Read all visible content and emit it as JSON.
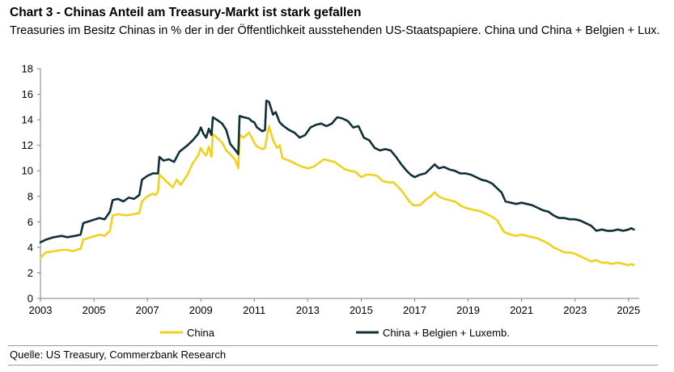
{
  "title": "Chart 3 - Chinas Anteil am Treasury-Markt ist stark gefallen",
  "subtitle": "Treasuries im Besitz Chinas in % der in der Öffentlichkeit ausstehenden US-Staatspapiere. China und China + Belgien + Lux.",
  "source": "Quelle: US Treasury, Commerzbank Research",
  "colors": {
    "china": "#f2d11d",
    "china_bel_lux": "#0f3037"
  },
  "chart_data": {
    "type": "line",
    "title": "Chart 3 - Chinas Anteil am Treasury-Markt ist stark gefallen",
    "xlabel": "",
    "ylabel": "",
    "xlim": [
      2003,
      2025.4
    ],
    "ylim": [
      0,
      18
    ],
    "x_ticks": [
      "2003",
      "2005",
      "2007",
      "2009",
      "2011",
      "2013",
      "2015",
      "2017",
      "2019",
      "2021",
      "2023",
      "2025"
    ],
    "x_tick_values": [
      2003,
      2005,
      2007,
      2009,
      2011,
      2013,
      2015,
      2017,
      2019,
      2021,
      2023,
      2025
    ],
    "y_ticks": [
      "0",
      "2",
      "4",
      "6",
      "8",
      "10",
      "12",
      "14",
      "16",
      "18"
    ],
    "y_tick_values": [
      0,
      2,
      4,
      6,
      8,
      10,
      12,
      14,
      16,
      18
    ],
    "grid": false,
    "legend": "bottom",
    "series": [
      {
        "name": "China",
        "color": "#f2d11d",
        "points": [
          [
            2003.0,
            3.2
          ],
          [
            2003.2,
            3.6
          ],
          [
            2003.5,
            3.7
          ],
          [
            2003.8,
            3.8
          ],
          [
            2004.0,
            3.8
          ],
          [
            2004.2,
            3.7
          ],
          [
            2004.5,
            3.9
          ],
          [
            2004.6,
            4.6
          ],
          [
            2004.9,
            4.8
          ],
          [
            2005.2,
            5.0
          ],
          [
            2005.4,
            4.9
          ],
          [
            2005.6,
            5.3
          ],
          [
            2005.7,
            6.5
          ],
          [
            2005.9,
            6.6
          ],
          [
            2006.2,
            6.5
          ],
          [
            2006.5,
            6.6
          ],
          [
            2006.7,
            6.7
          ],
          [
            2006.8,
            7.6
          ],
          [
            2007.0,
            8.0
          ],
          [
            2007.2,
            8.2
          ],
          [
            2007.3,
            8.1
          ],
          [
            2007.4,
            8.4
          ],
          [
            2007.45,
            9.7
          ],
          [
            2007.6,
            9.4
          ],
          [
            2007.8,
            9.0
          ],
          [
            2007.95,
            8.7
          ],
          [
            2008.1,
            9.3
          ],
          [
            2008.25,
            8.9
          ],
          [
            2008.5,
            9.7
          ],
          [
            2008.7,
            10.6
          ],
          [
            2008.9,
            11.2
          ],
          [
            2009.0,
            11.8
          ],
          [
            2009.1,
            11.4
          ],
          [
            2009.2,
            11.2
          ],
          [
            2009.3,
            11.9
          ],
          [
            2009.4,
            11.1
          ],
          [
            2009.45,
            12.9
          ],
          [
            2009.6,
            12.6
          ],
          [
            2009.8,
            12.2
          ],
          [
            2009.95,
            11.6
          ],
          [
            2010.1,
            11.3
          ],
          [
            2010.3,
            10.8
          ],
          [
            2010.4,
            10.2
          ],
          [
            2010.45,
            12.8
          ],
          [
            2010.6,
            12.6
          ],
          [
            2010.8,
            13.0
          ],
          [
            2010.9,
            12.6
          ],
          [
            2011.0,
            12.2
          ],
          [
            2011.1,
            11.9
          ],
          [
            2011.3,
            11.7
          ],
          [
            2011.4,
            11.8
          ],
          [
            2011.5,
            13.0
          ],
          [
            2011.55,
            13.5
          ],
          [
            2011.7,
            12.4
          ],
          [
            2011.85,
            11.8
          ],
          [
            2011.95,
            12.0
          ],
          [
            2012.05,
            11.0
          ],
          [
            2012.3,
            10.8
          ],
          [
            2012.6,
            10.5
          ],
          [
            2012.8,
            10.3
          ],
          [
            2013.0,
            10.2
          ],
          [
            2013.2,
            10.3
          ],
          [
            2013.4,
            10.6
          ],
          [
            2013.6,
            10.9
          ],
          [
            2013.8,
            10.8
          ],
          [
            2014.0,
            10.7
          ],
          [
            2014.2,
            10.4
          ],
          [
            2014.4,
            10.1
          ],
          [
            2014.6,
            10.0
          ],
          [
            2014.8,
            9.9
          ],
          [
            2015.0,
            9.5
          ],
          [
            2015.2,
            9.7
          ],
          [
            2015.4,
            9.7
          ],
          [
            2015.6,
            9.6
          ],
          [
            2015.8,
            9.2
          ],
          [
            2016.0,
            9.1
          ],
          [
            2016.2,
            9.1
          ],
          [
            2016.4,
            8.7
          ],
          [
            2016.6,
            8.2
          ],
          [
            2016.8,
            7.6
          ],
          [
            2016.95,
            7.3
          ],
          [
            2017.2,
            7.3
          ],
          [
            2017.4,
            7.7
          ],
          [
            2017.6,
            8.0
          ],
          [
            2017.75,
            8.3
          ],
          [
            2017.9,
            8.0
          ],
          [
            2018.1,
            7.8
          ],
          [
            2018.3,
            7.7
          ],
          [
            2018.5,
            7.6
          ],
          [
            2018.7,
            7.3
          ],
          [
            2018.9,
            7.1
          ],
          [
            2019.1,
            7.0
          ],
          [
            2019.3,
            6.9
          ],
          [
            2019.5,
            6.8
          ],
          [
            2019.7,
            6.6
          ],
          [
            2019.9,
            6.4
          ],
          [
            2020.1,
            6.1
          ],
          [
            2020.2,
            5.7
          ],
          [
            2020.35,
            5.2
          ],
          [
            2020.6,
            5.0
          ],
          [
            2020.8,
            4.9
          ],
          [
            2021.0,
            5.0
          ],
          [
            2021.2,
            4.9
          ],
          [
            2021.4,
            4.8
          ],
          [
            2021.6,
            4.7
          ],
          [
            2021.8,
            4.5
          ],
          [
            2022.0,
            4.3
          ],
          [
            2022.2,
            4.0
          ],
          [
            2022.4,
            3.8
          ],
          [
            2022.6,
            3.6
          ],
          [
            2022.8,
            3.6
          ],
          [
            2023.0,
            3.5
          ],
          [
            2023.2,
            3.3
          ],
          [
            2023.4,
            3.1
          ],
          [
            2023.6,
            2.9
          ],
          [
            2023.8,
            3.0
          ],
          [
            2024.0,
            2.8
          ],
          [
            2024.2,
            2.8
          ],
          [
            2024.4,
            2.7
          ],
          [
            2024.6,
            2.8
          ],
          [
            2024.8,
            2.7
          ],
          [
            2025.0,
            2.6
          ],
          [
            2025.1,
            2.7
          ],
          [
            2025.2,
            2.6
          ]
        ]
      },
      {
        "name": "China + Belgien + Luxemb.",
        "color": "#0f3037",
        "points": [
          [
            2003.0,
            4.4
          ],
          [
            2003.2,
            4.6
          ],
          [
            2003.5,
            4.8
          ],
          [
            2003.8,
            4.9
          ],
          [
            2004.0,
            4.8
          ],
          [
            2004.3,
            4.9
          ],
          [
            2004.5,
            5.0
          ],
          [
            2004.6,
            5.9
          ],
          [
            2004.9,
            6.1
          ],
          [
            2005.2,
            6.3
          ],
          [
            2005.4,
            6.2
          ],
          [
            2005.6,
            6.8
          ],
          [
            2005.7,
            7.7
          ],
          [
            2005.9,
            7.8
          ],
          [
            2006.1,
            7.6
          ],
          [
            2006.3,
            7.9
          ],
          [
            2006.5,
            7.8
          ],
          [
            2006.7,
            8.1
          ],
          [
            2006.8,
            9.3
          ],
          [
            2007.0,
            9.6
          ],
          [
            2007.2,
            9.8
          ],
          [
            2007.4,
            9.8
          ],
          [
            2007.45,
            11.1
          ],
          [
            2007.6,
            10.8
          ],
          [
            2007.8,
            10.9
          ],
          [
            2008.0,
            10.7
          ],
          [
            2008.2,
            11.5
          ],
          [
            2008.5,
            12.0
          ],
          [
            2008.7,
            12.4
          ],
          [
            2008.9,
            12.9
          ],
          [
            2009.0,
            13.4
          ],
          [
            2009.1,
            12.9
          ],
          [
            2009.2,
            12.6
          ],
          [
            2009.3,
            13.3
          ],
          [
            2009.4,
            12.8
          ],
          [
            2009.45,
            14.2
          ],
          [
            2009.6,
            14.0
          ],
          [
            2009.8,
            13.7
          ],
          [
            2009.95,
            13.2
          ],
          [
            2010.1,
            12.1
          ],
          [
            2010.3,
            11.6
          ],
          [
            2010.4,
            11.3
          ],
          [
            2010.45,
            14.3
          ],
          [
            2010.6,
            14.2
          ],
          [
            2010.8,
            14.1
          ],
          [
            2010.9,
            13.9
          ],
          [
            2011.0,
            13.8
          ],
          [
            2011.1,
            13.4
          ],
          [
            2011.3,
            13.1
          ],
          [
            2011.4,
            13.2
          ],
          [
            2011.45,
            15.5
          ],
          [
            2011.55,
            15.4
          ],
          [
            2011.7,
            14.4
          ],
          [
            2011.8,
            14.6
          ],
          [
            2011.95,
            13.8
          ],
          [
            2012.1,
            13.5
          ],
          [
            2012.3,
            13.2
          ],
          [
            2012.5,
            13.0
          ],
          [
            2012.7,
            12.6
          ],
          [
            2012.9,
            12.8
          ],
          [
            2013.1,
            13.4
          ],
          [
            2013.3,
            13.6
          ],
          [
            2013.5,
            13.7
          ],
          [
            2013.7,
            13.5
          ],
          [
            2013.9,
            13.7
          ],
          [
            2014.1,
            14.2
          ],
          [
            2014.3,
            14.1
          ],
          [
            2014.5,
            13.9
          ],
          [
            2014.7,
            13.4
          ],
          [
            2014.9,
            13.5
          ],
          [
            2015.1,
            12.6
          ],
          [
            2015.3,
            12.4
          ],
          [
            2015.5,
            11.8
          ],
          [
            2015.7,
            11.6
          ],
          [
            2015.9,
            11.7
          ],
          [
            2016.1,
            11.6
          ],
          [
            2016.3,
            11.1
          ],
          [
            2016.5,
            10.5
          ],
          [
            2016.7,
            10.0
          ],
          [
            2016.85,
            9.7
          ],
          [
            2017.0,
            9.5
          ],
          [
            2017.2,
            9.7
          ],
          [
            2017.4,
            9.8
          ],
          [
            2017.6,
            10.2
          ],
          [
            2017.75,
            10.5
          ],
          [
            2017.9,
            10.2
          ],
          [
            2018.1,
            10.3
          ],
          [
            2018.3,
            10.1
          ],
          [
            2018.5,
            10.0
          ],
          [
            2018.7,
            9.8
          ],
          [
            2018.9,
            9.8
          ],
          [
            2019.1,
            9.7
          ],
          [
            2019.3,
            9.5
          ],
          [
            2019.5,
            9.3
          ],
          [
            2019.7,
            9.2
          ],
          [
            2019.9,
            9.0
          ],
          [
            2020.1,
            8.6
          ],
          [
            2020.25,
            8.3
          ],
          [
            2020.4,
            7.6
          ],
          [
            2020.6,
            7.5
          ],
          [
            2020.8,
            7.4
          ],
          [
            2021.0,
            7.5
          ],
          [
            2021.2,
            7.4
          ],
          [
            2021.4,
            7.3
          ],
          [
            2021.6,
            7.1
          ],
          [
            2021.8,
            6.9
          ],
          [
            2022.0,
            6.8
          ],
          [
            2022.2,
            6.5
          ],
          [
            2022.4,
            6.3
          ],
          [
            2022.6,
            6.3
          ],
          [
            2022.8,
            6.2
          ],
          [
            2023.0,
            6.2
          ],
          [
            2023.2,
            6.1
          ],
          [
            2023.4,
            5.9
          ],
          [
            2023.6,
            5.7
          ],
          [
            2023.8,
            5.3
          ],
          [
            2024.0,
            5.4
          ],
          [
            2024.2,
            5.3
          ],
          [
            2024.4,
            5.3
          ],
          [
            2024.6,
            5.4
          ],
          [
            2024.8,
            5.3
          ],
          [
            2025.0,
            5.4
          ],
          [
            2025.1,
            5.5
          ],
          [
            2025.2,
            5.4
          ]
        ]
      }
    ]
  }
}
